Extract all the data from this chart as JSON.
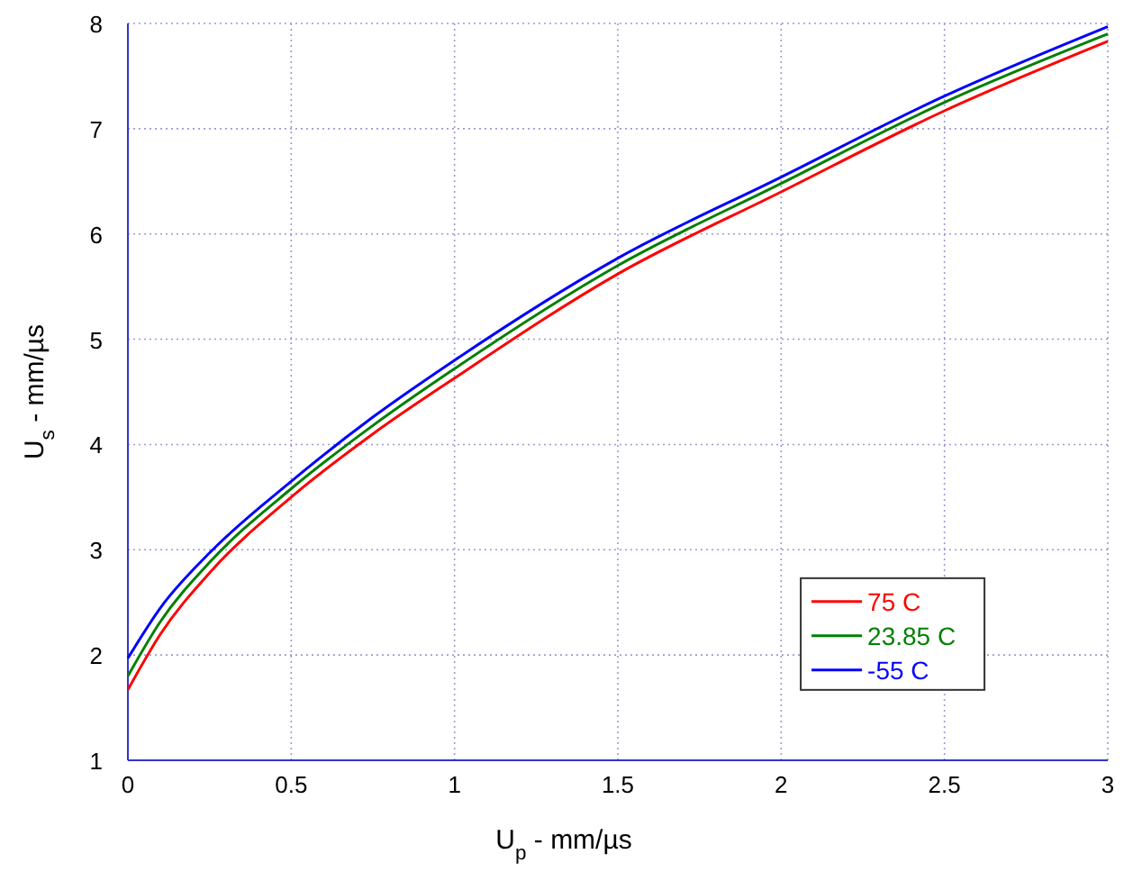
{
  "chart_data": {
    "type": "line",
    "xlabel": "U$_{p}$ - mm/µs",
    "ylabel": "U$_{s}$ - mm/µs",
    "xlim": [
      0,
      3
    ],
    "ylim": [
      1,
      8
    ],
    "xticks": [
      0,
      0.5,
      1,
      1.5,
      2,
      2.5,
      3
    ],
    "yticks": [
      1,
      2,
      3,
      4,
      5,
      6,
      7,
      8
    ],
    "grid": true,
    "legend": "bottom right",
    "line_style": "solid",
    "marker": "none",
    "x": [
      0,
      0.1,
      0.25,
      0.5,
      0.75,
      1,
      1.5,
      2,
      2.5,
      3
    ],
    "series": [
      {
        "name": "75 C",
        "color": "#ff0000",
        "values": [
          1.67,
          2.2,
          2.78,
          3.5,
          4.1,
          4.63,
          5.62,
          6.4,
          7.17,
          7.83
        ]
      },
      {
        "name": "23.85 C",
        "color": "#008000",
        "values": [
          1.8,
          2.32,
          2.88,
          3.58,
          4.18,
          4.72,
          5.7,
          6.48,
          7.25,
          7.9
        ]
      },
      {
        "name": "-55 C",
        "color": "#0000ff",
        "values": [
          1.97,
          2.45,
          2.97,
          3.65,
          4.26,
          4.8,
          5.77,
          6.54,
          7.31,
          7.97
        ]
      }
    ]
  }
}
